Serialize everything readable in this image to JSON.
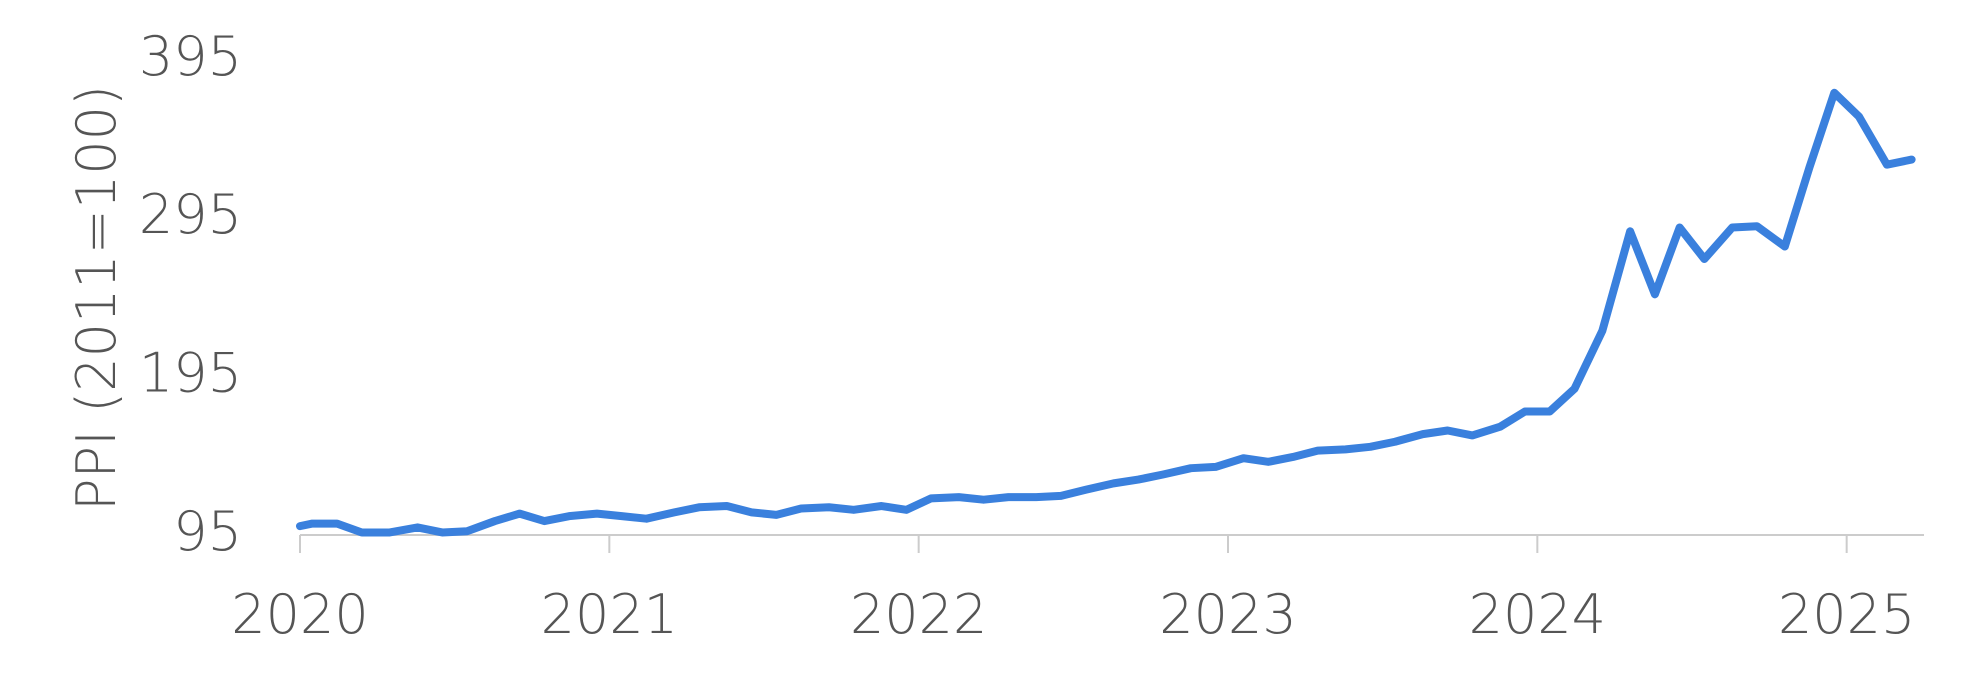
{
  "chart_data": {
    "type": "line",
    "y_label": "PPI (2011=100)",
    "x": [
      2020.0,
      2020.04,
      2020.12,
      2020.2,
      2020.29,
      2020.38,
      2020.46,
      2020.54,
      2020.63,
      2020.71,
      2020.79,
      2020.87,
      2020.96,
      2021.04,
      2021.12,
      2021.21,
      2021.29,
      2021.38,
      2021.46,
      2021.54,
      2021.62,
      2021.71,
      2021.79,
      2021.88,
      2021.96,
      2022.04,
      2022.13,
      2022.21,
      2022.29,
      2022.38,
      2022.46,
      2022.54,
      2022.63,
      2022.71,
      2022.79,
      2022.88,
      2022.96,
      2023.05,
      2023.13,
      2023.21,
      2023.29,
      2023.38,
      2023.46,
      2023.54,
      2023.63,
      2023.71,
      2023.79,
      2023.88,
      2023.96,
      2024.04,
      2024.12,
      2024.21,
      2024.3,
      2024.38,
      2024.46,
      2024.54,
      2024.63,
      2024.71,
      2024.8,
      2024.88,
      2024.96,
      2025.04,
      2025.13,
      2025.21
    ],
    "series": [
      {
        "color": "#3a80dd",
        "values": [
          100.6,
          102.2,
          102.2,
          96.6,
          96.6,
          99.8,
          96.6,
          97.4,
          103.8,
          108.5,
          103.8,
          106.9,
          108.5,
          106.9,
          105.3,
          109.3,
          112.5,
          113.3,
          109.3,
          107.7,
          111.7,
          112.5,
          110.9,
          113.3,
          110.9,
          118.1,
          118.9,
          117.3,
          118.9,
          118.9,
          119.7,
          123.6,
          127.6,
          130.0,
          133.2,
          137.2,
          138.0,
          143.5,
          141.2,
          144.3,
          148.3,
          149.1,
          150.7,
          153.9,
          158.7,
          161.0,
          157.9,
          163.4,
          173.0,
          173.0,
          187.3,
          223.9,
          286.8,
          247.0,
          289.2,
          269.3,
          289.2,
          290.0,
          277.2,
          327.4,
          374.3,
          359.2,
          328.9,
          332.1
        ]
      }
    ],
    "xlim": [
      2020,
      2025.25
    ],
    "xticks": [
      2020,
      2021,
      2022,
      2023,
      2024,
      2025
    ],
    "ylim": [
      95,
      395
    ],
    "yticks": [
      95,
      195,
      295,
      395
    ],
    "grid": false
  }
}
